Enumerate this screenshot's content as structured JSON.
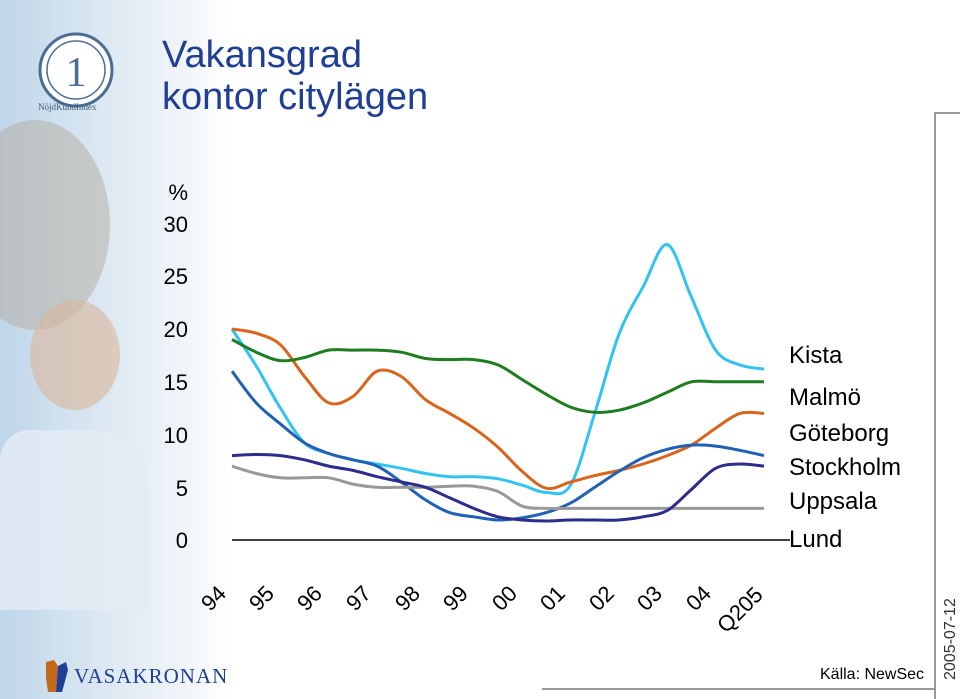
{
  "slide": {
    "title_line1": "Vakansgrad",
    "title_line2": "kontor citylägen",
    "badge_text": "NöjdKundIndex",
    "logo_text": "VASAKRONAN",
    "source": "Källa: NewSec",
    "date": "2005-07-12"
  },
  "chart_data": {
    "type": "line",
    "title": "",
    "ylabel": "%",
    "ylim": [
      0,
      30
    ],
    "yticks": [
      "0",
      "5",
      "10",
      "15",
      "20",
      "25",
      "30"
    ],
    "categories": [
      "94",
      "95",
      "96",
      "97",
      "98",
      "99",
      "00",
      "01",
      "02",
      "03",
      "04",
      "Q205"
    ],
    "grid": false,
    "legend": "right",
    "series": [
      {
        "name": "Kista",
        "color": "#33c3f2",
        "x": [
          94.0,
          94.5,
          95.0,
          95.5,
          96.0,
          96.5,
          97.0,
          97.5,
          98.0,
          98.5,
          99.0,
          99.5,
          100.0,
          100.5,
          101.0,
          101.5,
          102.0,
          102.5,
          103.0,
          103.5,
          104.0,
          104.5,
          105.0
        ],
        "values": [
          20.0,
          16.5,
          12.5,
          9.2,
          8.2,
          7.6,
          7.2,
          6.8,
          6.3,
          6.0,
          6.0,
          5.8,
          5.2,
          4.5,
          5.2,
          12.0,
          19.5,
          24.0,
          28.0,
          23.0,
          18.0,
          16.6,
          16.2
        ]
      },
      {
        "name": "Malmö",
        "color": "#d9651c",
        "x": [
          94.0,
          94.5,
          95.0,
          95.5,
          96.0,
          96.5,
          97.0,
          97.5,
          98.0,
          98.5,
          99.0,
          99.5,
          100.0,
          100.5,
          101.0,
          101.5,
          102.0,
          102.5,
          103.0,
          103.5,
          104.0,
          104.5,
          105.0
        ],
        "values": [
          20.0,
          19.6,
          18.5,
          15.5,
          13.0,
          13.6,
          16.0,
          15.5,
          13.3,
          12.0,
          10.6,
          8.8,
          6.5,
          4.9,
          5.5,
          6.1,
          6.6,
          7.2,
          8.0,
          9.0,
          10.6,
          12.0,
          12.0
        ]
      },
      {
        "name": "Göteborg",
        "color": "#1e7d1e",
        "x": [
          94.0,
          94.5,
          95.0,
          95.5,
          96.0,
          96.5,
          97.0,
          97.5,
          98.0,
          98.5,
          99.0,
          99.5,
          100.0,
          100.5,
          101.0,
          101.5,
          102.0,
          102.5,
          103.0,
          103.5,
          104.0,
          104.5,
          105.0
        ],
        "values": [
          19.0,
          17.8,
          17.0,
          17.3,
          18.0,
          18.0,
          18.0,
          17.8,
          17.2,
          17.1,
          17.1,
          16.6,
          15.2,
          13.8,
          12.6,
          12.1,
          12.3,
          13.0,
          14.0,
          15.0,
          15.0,
          15.0,
          15.0
        ]
      },
      {
        "name": "Stockholm",
        "color": "#1f62b5",
        "x": [
          94.0,
          94.5,
          95.0,
          95.5,
          96.0,
          96.5,
          97.0,
          97.5,
          98.0,
          98.5,
          99.0,
          99.5,
          100.0,
          100.5,
          101.0,
          101.5,
          102.0,
          102.5,
          103.0,
          103.5,
          104.0,
          104.5,
          105.0
        ],
        "values": [
          16.0,
          13.0,
          11.0,
          9.2,
          8.2,
          7.6,
          7.0,
          5.5,
          3.8,
          2.6,
          2.2,
          1.9,
          2.1,
          2.6,
          3.5,
          5.0,
          6.5,
          7.8,
          8.6,
          9.0,
          8.9,
          8.5,
          8.0
        ]
      },
      {
        "name": "Uppsala",
        "color": "#999999",
        "x": [
          94.0,
          94.5,
          95.0,
          95.5,
          96.0,
          96.5,
          97.0,
          97.5,
          98.0,
          98.5,
          99.0,
          99.5,
          100.0,
          100.5,
          101.0,
          101.5,
          102.0,
          102.5,
          103.0,
          103.5,
          104.0,
          104.5,
          105.0
        ],
        "values": [
          7.0,
          6.3,
          5.9,
          5.9,
          5.9,
          5.3,
          5.0,
          5.0,
          5.0,
          5.1,
          5.1,
          4.6,
          3.2,
          3.0,
          3.0,
          3.0,
          3.0,
          3.0,
          3.0,
          3.0,
          3.0,
          3.0,
          3.0
        ]
      },
      {
        "name": "Lund",
        "color": "#2c2c8c",
        "x": [
          94.0,
          94.5,
          95.0,
          95.5,
          96.0,
          96.5,
          97.0,
          97.5,
          98.0,
          98.5,
          99.0,
          99.5,
          100.0,
          100.5,
          101.0,
          101.5,
          102.0,
          102.5,
          103.0,
          103.5,
          104.0,
          104.5,
          105.0
        ],
        "values": [
          8.0,
          8.1,
          8.0,
          7.6,
          7.0,
          6.6,
          6.0,
          5.5,
          5.0,
          4.0,
          3.0,
          2.2,
          1.9,
          1.8,
          1.9,
          1.9,
          1.9,
          2.2,
          2.8,
          4.8,
          6.8,
          7.2,
          7.0
        ]
      }
    ]
  }
}
